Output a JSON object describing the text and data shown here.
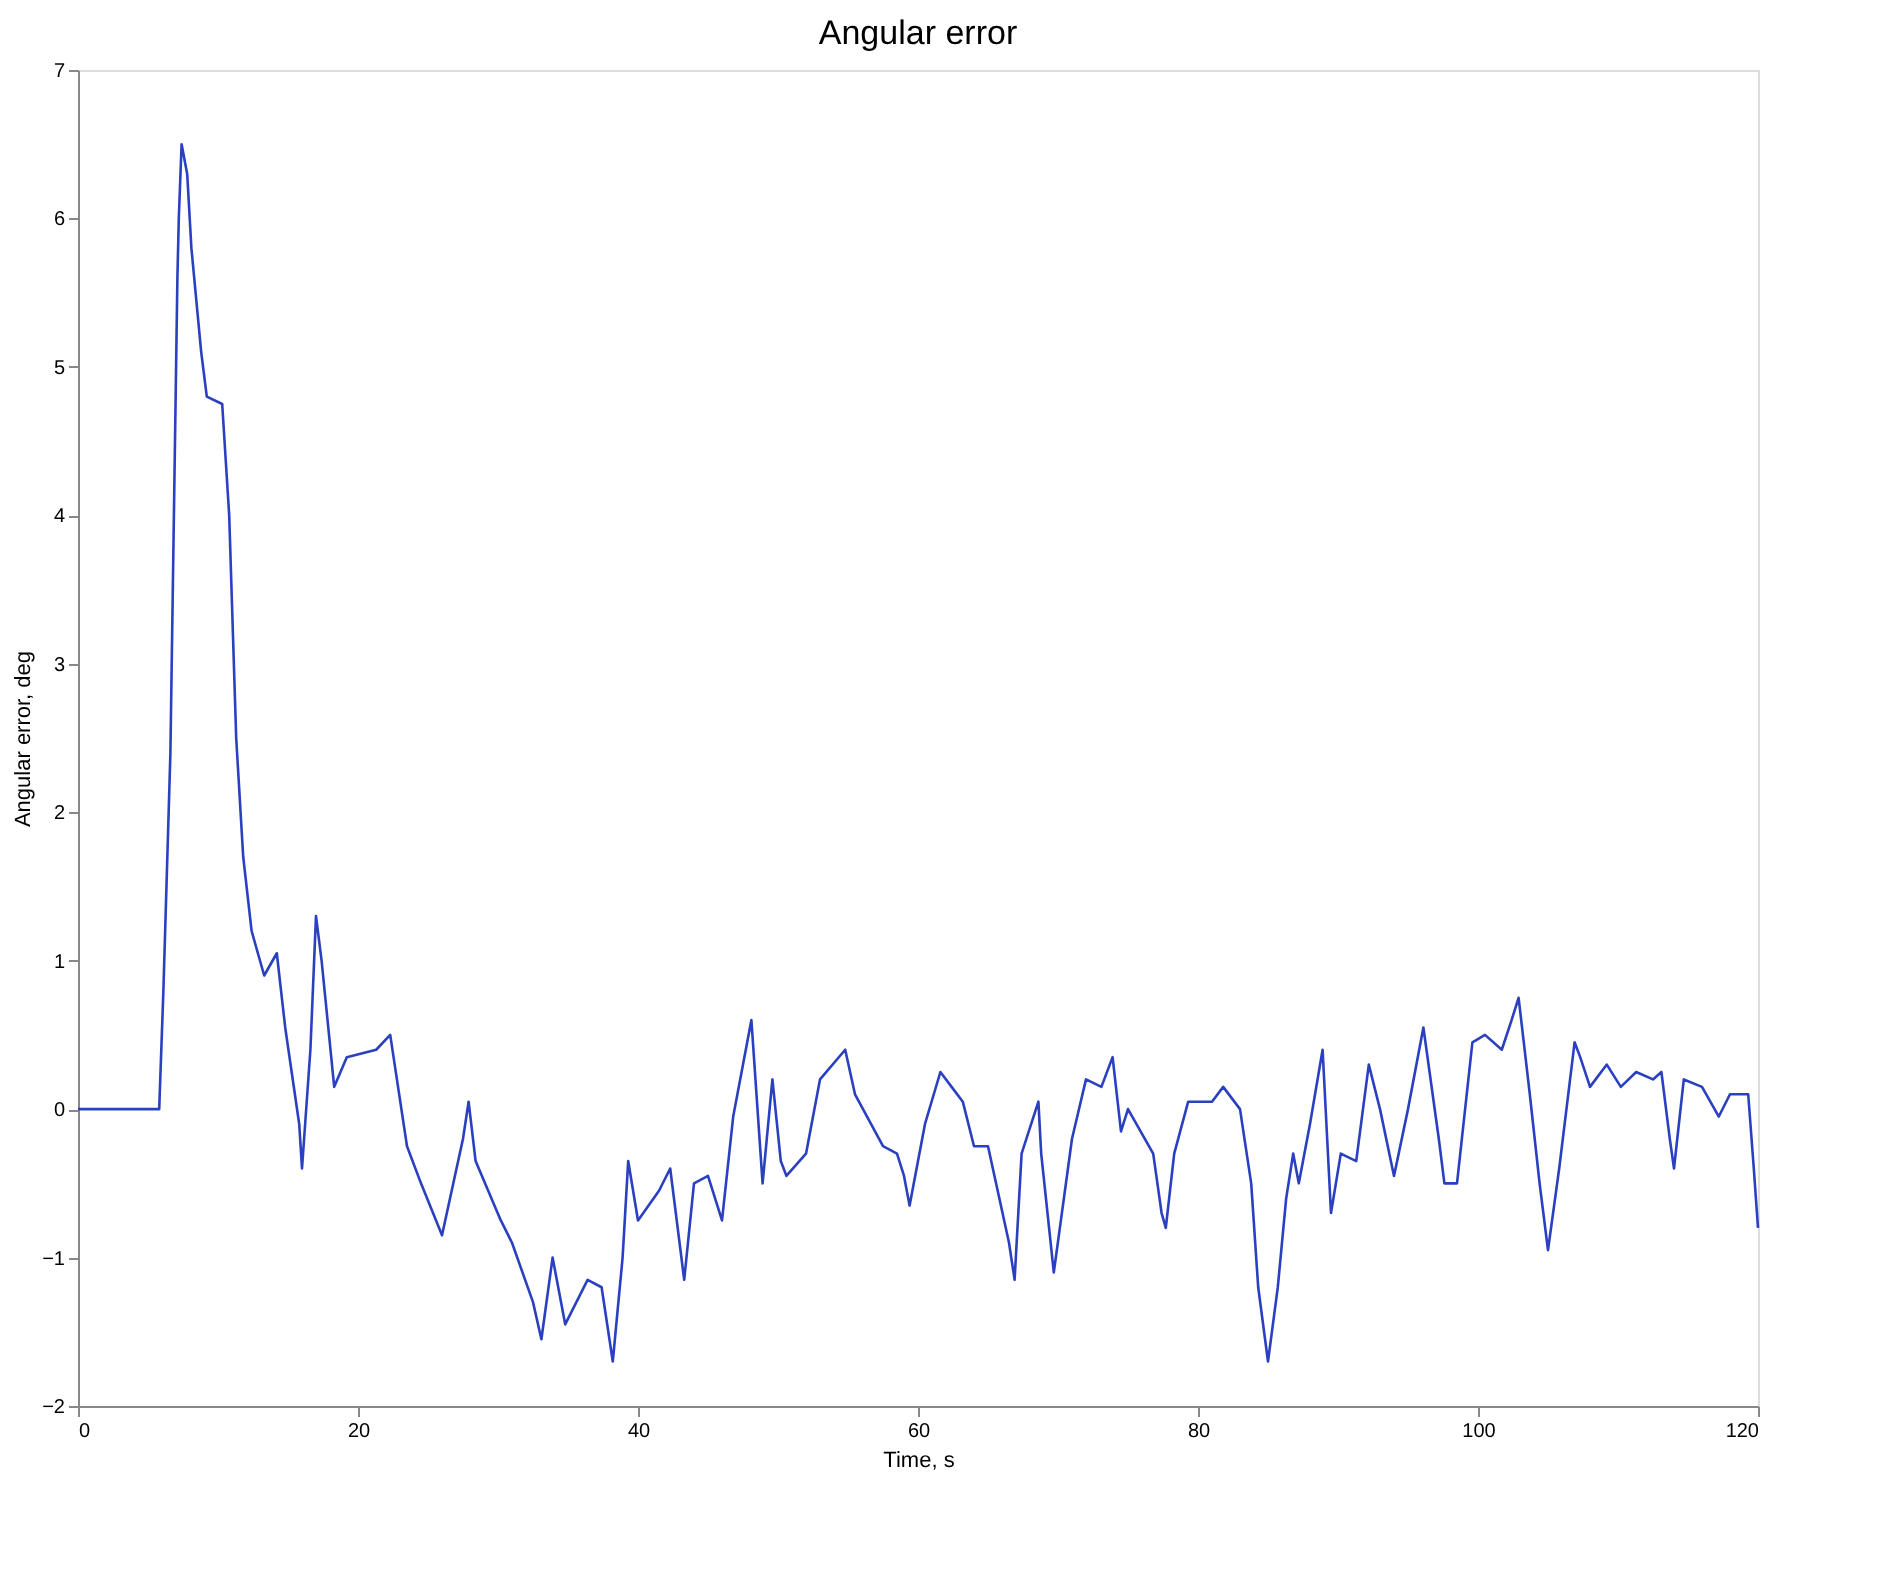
{
  "chart_data": {
    "type": "line",
    "title": "Angular error",
    "xlabel": "Time, s",
    "ylabel": "Angular error, deg",
    "xlim": [
      0,
      120
    ],
    "xticks": [
      0,
      20,
      40,
      60,
      80,
      100,
      120
    ],
    "ylim": [
      -2,
      7
    ],
    "yticks": [
      -2,
      -1,
      0,
      1,
      2,
      3,
      4,
      5,
      6,
      7
    ],
    "grid": false,
    "legend": false,
    "marker": "none",
    "line_style": "solid",
    "x": [
      0,
      5.8,
      6.1,
      6.6,
      7.1,
      7.2,
      7.4,
      7.8,
      8.1,
      8.8,
      9.2,
      10.3,
      10.8,
      11.3,
      11.8,
      12.4,
      13.3,
      14.2,
      14.8,
      15.8,
      16.0,
      16.6,
      17.0,
      17.4,
      18.3,
      19.2,
      21.3,
      22.3,
      23.5,
      24.5,
      26.0,
      27.5,
      27.9,
      28.4,
      30.2,
      31.0,
      32.5,
      33.1,
      33.9,
      34.8,
      36.4,
      37.4,
      38.2,
      38.9,
      39.3,
      40.0,
      41.5,
      42.3,
      43.3,
      44.0,
      45.0,
      46.0,
      46.8,
      48.1,
      48.9,
      49.6,
      50.2,
      50.6,
      52.0,
      53.0,
      54.8,
      55.5,
      57.5,
      58.5,
      59.0,
      59.4,
      60.5,
      61.6,
      62.4,
      63.2,
      64.0,
      65.0,
      66.5,
      66.9,
      67.4,
      68.6,
      68.8,
      69.7,
      71.0,
      72.0,
      73.1,
      73.9,
      74.5,
      75.0,
      76.8,
      77.4,
      77.7,
      78.3,
      79.3,
      81.0,
      81.8,
      83.0,
      83.8,
      84.3,
      85.0,
      85.7,
      86.3,
      86.8,
      87.2,
      88.0,
      88.9,
      89.5,
      90.2,
      91.3,
      92.2,
      93.0,
      94.0,
      95.0,
      96.1,
      97.2,
      97.6,
      98.5,
      99.6,
      100.5,
      101.7,
      102.4,
      102.9,
      103.7,
      104.4,
      105.0,
      105.8,
      106.9,
      107.3,
      108.0,
      109.2,
      110.2,
      111.3,
      112.5,
      113.1,
      113.7,
      114.0,
      114.7,
      116.0,
      117.2,
      118.0,
      119.3,
      119.7,
      120.0
    ],
    "series": [
      {
        "color": "#2a40c0",
        "values": [
          0,
          0,
          0.8,
          2.4,
          5.6,
          6.0,
          6.5,
          6.3,
          5.8,
          5.1,
          4.8,
          4.75,
          4.0,
          2.5,
          1.7,
          1.2,
          0.9,
          1.05,
          0.55,
          -0.1,
          -0.4,
          0.4,
          1.3,
          1.0,
          0.15,
          0.35,
          0.4,
          0.5,
          -0.25,
          -0.5,
          -0.85,
          -0.2,
          0.05,
          -0.35,
          -0.75,
          -0.9,
          -1.3,
          -1.55,
          -1.0,
          -1.45,
          -1.15,
          -1.2,
          -1.7,
          -1.0,
          -0.35,
          -0.75,
          -0.55,
          -0.4,
          -1.15,
          -0.5,
          -0.45,
          -0.75,
          -0.05,
          0.6,
          -0.5,
          0.2,
          -0.35,
          -0.45,
          -0.3,
          0.2,
          0.4,
          0.1,
          -0.25,
          -0.3,
          -0.45,
          -0.65,
          -0.1,
          0.25,
          0.15,
          0.05,
          -0.25,
          -0.25,
          -0.9,
          -1.15,
          -0.3,
          0.05,
          -0.3,
          -1.1,
          -0.2,
          0.2,
          0.15,
          0.35,
          -0.15,
          0,
          -0.3,
          -0.7,
          -0.8,
          -0.3,
          0.05,
          0.05,
          0.15,
          0.0,
          -0.5,
          -1.2,
          -1.7,
          -1.2,
          -0.6,
          -0.3,
          -0.5,
          -0.1,
          0.4,
          -0.7,
          -0.3,
          -0.35,
          0.3,
          0.0,
          -0.45,
          0.0,
          0.55,
          -0.2,
          -0.5,
          -0.5,
          0.45,
          0.5,
          0.4,
          0.6,
          0.75,
          0.1,
          -0.5,
          -0.95,
          -0.4,
          0.45,
          0.35,
          0.15,
          0.3,
          0.15,
          0.25,
          0.2,
          0.25,
          -0.2,
          -0.4,
          0.2,
          0.15,
          -0.05,
          0.1,
          0.1,
          -0.4,
          -0.8
        ]
      }
    ]
  }
}
